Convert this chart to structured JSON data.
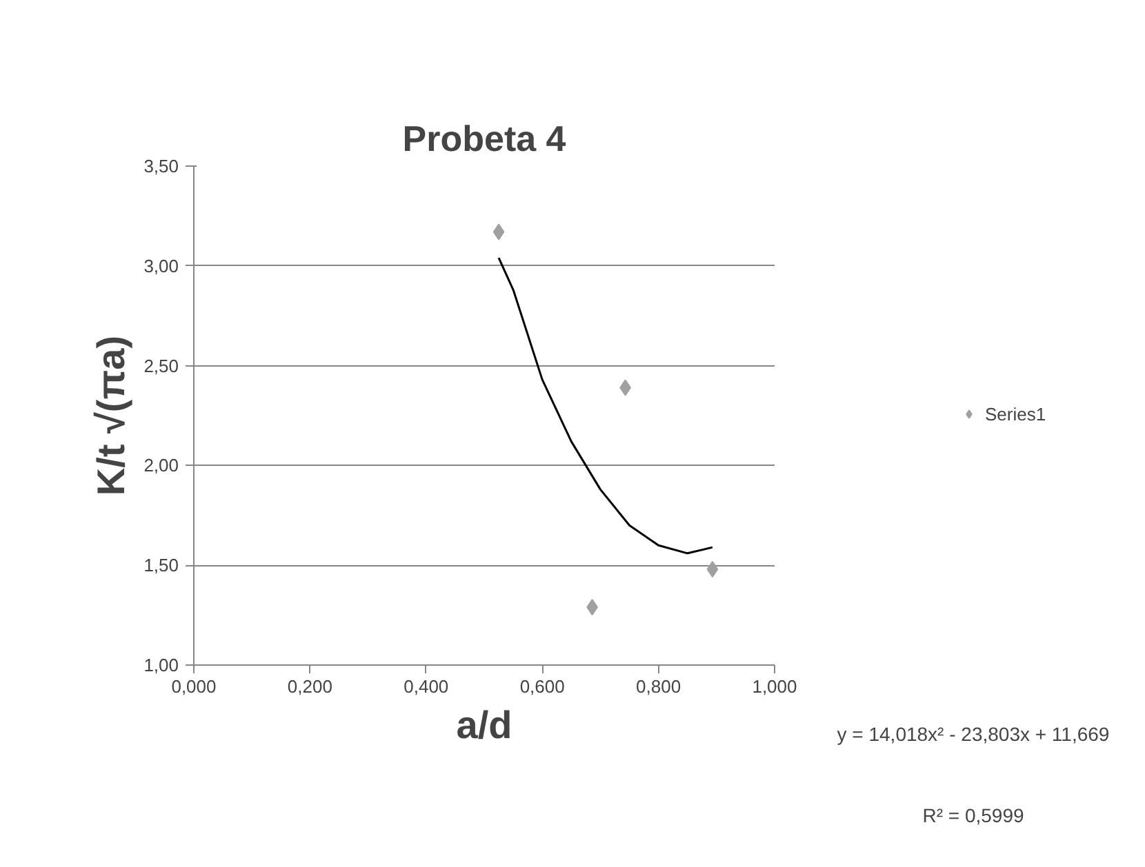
{
  "chart_data": {
    "type": "scatter",
    "title": "Probeta 4",
    "xlabel": "a/d",
    "ylabel": "K/t √(πa)",
    "series": [
      {
        "name": "Series1",
        "color": "#a0a0a0",
        "marker": "diamond",
        "x": [
          0.525,
          0.686,
          0.743,
          0.893
        ],
        "values": [
          3.17,
          1.29,
          2.39,
          1.48
        ]
      },
      {
        "type": "line",
        "color": "#000000",
        "marker": "none",
        "x": [
          0.525,
          0.55,
          0.6,
          0.65,
          0.7,
          0.75,
          0.8,
          0.85,
          0.893
        ],
        "values": [
          3.04,
          2.88,
          2.43,
          2.12,
          1.88,
          1.7,
          1.6,
          1.56,
          1.59
        ]
      }
    ],
    "xlim": [
      0,
      1
    ],
    "ylim": [
      1,
      3.5
    ],
    "xticks": [
      {
        "value": 0,
        "label": "0,000"
      },
      {
        "value": 0.2,
        "label": "0,200"
      },
      {
        "value": 0.4,
        "label": "0,400"
      },
      {
        "value": 0.6,
        "label": "0,600"
      },
      {
        "value": 0.8,
        "label": "0,800"
      },
      {
        "value": 1,
        "label": "1,000"
      }
    ],
    "yticks": [
      {
        "value": 1,
        "label": "1,00"
      },
      {
        "value": 1.5,
        "label": "1,50"
      },
      {
        "value": 2,
        "label": "2,00"
      },
      {
        "value": 2.5,
        "label": "2,50"
      },
      {
        "value": 3,
        "label": "3,00"
      },
      {
        "value": 3.5,
        "label": "3,50"
      }
    ],
    "grid": "y",
    "legend": "right",
    "annotations": [
      "y = 14,018x² - 23,803x + 11,669",
      "R² = 0,5999"
    ]
  }
}
